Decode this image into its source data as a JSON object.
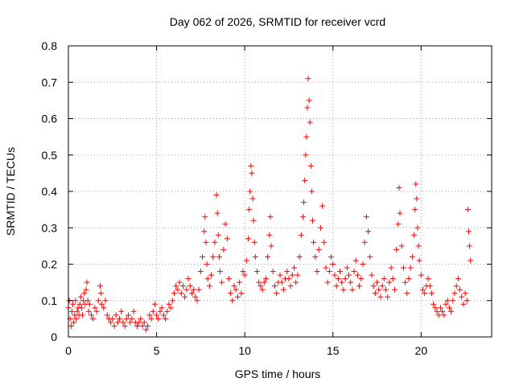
{
  "chart_data": {
    "type": "scatter",
    "title": "Day 062 of 2026, SRMTID for receiver vcrd",
    "xlabel": "GPS time / hours",
    "ylabel": "SRMTID / TECUs",
    "xlim": [
      0,
      24
    ],
    "ylim": [
      0,
      0.8
    ],
    "xticks": [
      0,
      5,
      10,
      15,
      20
    ],
    "yticks": [
      0,
      0.1,
      0.2,
      0.3,
      0.4,
      0.5,
      0.6,
      0.7,
      0.8
    ],
    "ytick_labels": [
      "0",
      "0.1",
      "0.2",
      "0.3",
      "0.4",
      "0.5",
      "0.6",
      "0.7",
      "0.8"
    ],
    "grid": true,
    "marker": "+",
    "series": [
      {
        "name": "SRMTID",
        "color": "#ff0000",
        "points": [
          [
            0.0,
            0.08
          ],
          [
            0.05,
            0.1
          ],
          [
            0.1,
            0.05
          ],
          [
            0.15,
            0.03
          ],
          [
            0.2,
            0.07
          ],
          [
            0.25,
            0.09
          ],
          [
            0.3,
            0.04
          ],
          [
            0.35,
            0.06
          ],
          [
            0.4,
            0.1
          ],
          [
            0.45,
            0.05
          ],
          [
            0.5,
            0.07
          ],
          [
            0.55,
            0.08
          ],
          [
            0.6,
            0.06
          ],
          [
            0.65,
            0.09
          ],
          [
            0.7,
            0.11
          ],
          [
            0.75,
            0.08
          ],
          [
            0.8,
            0.06
          ],
          [
            0.85,
            0.1
          ],
          [
            0.9,
            0.12
          ],
          [
            0.95,
            0.09
          ],
          [
            1.0,
            0.13
          ],
          [
            1.05,
            0.15
          ],
          [
            1.1,
            0.1
          ],
          [
            1.15,
            0.07
          ],
          [
            1.2,
            0.09
          ],
          [
            1.3,
            0.06
          ],
          [
            1.4,
            0.05
          ],
          [
            1.5,
            0.08
          ],
          [
            1.6,
            0.07
          ],
          [
            1.7,
            0.1
          ],
          [
            1.8,
            0.14
          ],
          [
            1.85,
            0.12
          ],
          [
            1.9,
            0.09
          ],
          [
            2.0,
            0.08
          ],
          [
            2.1,
            0.1
          ],
          [
            2.2,
            0.06
          ],
          [
            2.3,
            0.05
          ],
          [
            2.4,
            0.04
          ],
          [
            2.5,
            0.05
          ],
          [
            2.6,
            0.03
          ],
          [
            2.7,
            0.06
          ],
          [
            2.8,
            0.04
          ],
          [
            2.9,
            0.05
          ],
          [
            3.0,
            0.07
          ],
          [
            3.1,
            0.04
          ],
          [
            3.2,
            0.03
          ],
          [
            3.3,
            0.05
          ],
          [
            3.4,
            0.06
          ],
          [
            3.5,
            0.04
          ],
          [
            3.6,
            0.05
          ],
          [
            3.7,
            0.07
          ],
          [
            3.8,
            0.04
          ],
          [
            3.9,
            0.03
          ],
          [
            4.0,
            0.04
          ],
          [
            4.1,
            0.05
          ],
          [
            4.2,
            0.03
          ],
          [
            4.3,
            0.04
          ],
          [
            4.4,
            0.02
          ],
          [
            4.5,
            0.03
          ],
          [
            4.6,
            0.06
          ],
          [
            4.7,
            0.05
          ],
          [
            4.8,
            0.07
          ],
          [
            4.9,
            0.09
          ],
          [
            5.0,
            0.06
          ],
          [
            5.1,
            0.05
          ],
          [
            5.2,
            0.07
          ],
          [
            5.3,
            0.08
          ],
          [
            5.4,
            0.06
          ],
          [
            5.5,
            0.05
          ],
          [
            5.6,
            0.07
          ],
          [
            5.7,
            0.09
          ],
          [
            5.8,
            0.08
          ],
          [
            5.9,
            0.1
          ],
          [
            6.0,
            0.12
          ],
          [
            6.1,
            0.14
          ],
          [
            6.2,
            0.13
          ],
          [
            6.3,
            0.15
          ],
          [
            6.4,
            0.12
          ],
          [
            6.5,
            0.14
          ],
          [
            6.6,
            0.11
          ],
          [
            6.7,
            0.13
          ],
          [
            6.8,
            0.16
          ],
          [
            6.9,
            0.14
          ],
          [
            7.0,
            0.12
          ],
          [
            7.1,
            0.13
          ],
          [
            7.2,
            0.11
          ],
          [
            7.3,
            0.1
          ],
          [
            7.4,
            0.13
          ],
          [
            7.5,
            0.18
          ],
          [
            7.6,
            0.22
          ],
          [
            7.7,
            0.29
          ],
          [
            7.75,
            0.33
          ],
          [
            7.8,
            0.26
          ],
          [
            7.85,
            0.2
          ],
          [
            7.9,
            0.16
          ],
          [
            8.0,
            0.14
          ],
          [
            8.1,
            0.17
          ],
          [
            8.2,
            0.22
          ],
          [
            8.3,
            0.26
          ],
          [
            8.4,
            0.39
          ],
          [
            8.45,
            0.34
          ],
          [
            8.5,
            0.28
          ],
          [
            8.55,
            0.22
          ],
          [
            8.6,
            0.18
          ],
          [
            8.7,
            0.15
          ],
          [
            8.8,
            0.24
          ],
          [
            8.9,
            0.31
          ],
          [
            9.0,
            0.27
          ],
          [
            9.1,
            0.16
          ],
          [
            9.2,
            0.12
          ],
          [
            9.3,
            0.1
          ],
          [
            9.4,
            0.14
          ],
          [
            9.5,
            0.13
          ],
          [
            9.6,
            0.11
          ],
          [
            9.7,
            0.15
          ],
          [
            9.8,
            0.12
          ],
          [
            9.9,
            0.18
          ],
          [
            10.0,
            0.17
          ],
          [
            10.1,
            0.21
          ],
          [
            10.2,
            0.27
          ],
          [
            10.25,
            0.35
          ],
          [
            10.3,
            0.4
          ],
          [
            10.35,
            0.47
          ],
          [
            10.4,
            0.45
          ],
          [
            10.45,
            0.38
          ],
          [
            10.5,
            0.32
          ],
          [
            10.55,
            0.26
          ],
          [
            10.6,
            0.22
          ],
          [
            10.7,
            0.18
          ],
          [
            10.8,
            0.15
          ],
          [
            10.9,
            0.14
          ],
          [
            11.0,
            0.13
          ],
          [
            11.1,
            0.15
          ],
          [
            11.2,
            0.16
          ],
          [
            11.3,
            0.22
          ],
          [
            11.4,
            0.28
          ],
          [
            11.45,
            0.33
          ],
          [
            11.5,
            0.25
          ],
          [
            11.6,
            0.18
          ],
          [
            11.7,
            0.14
          ],
          [
            11.8,
            0.12
          ],
          [
            11.9,
            0.15
          ],
          [
            12.0,
            0.17
          ],
          [
            12.1,
            0.15
          ],
          [
            12.2,
            0.13
          ],
          [
            12.3,
            0.16
          ],
          [
            12.4,
            0.18
          ],
          [
            12.5,
            0.16
          ],
          [
            12.6,
            0.14
          ],
          [
            12.7,
            0.17
          ],
          [
            12.8,
            0.19
          ],
          [
            12.9,
            0.15
          ],
          [
            13.0,
            0.17
          ],
          [
            13.1,
            0.22
          ],
          [
            13.2,
            0.28
          ],
          [
            13.3,
            0.33
          ],
          [
            13.35,
            0.37
          ],
          [
            13.4,
            0.43
          ],
          [
            13.45,
            0.5
          ],
          [
            13.5,
            0.55
          ],
          [
            13.55,
            0.63
          ],
          [
            13.6,
            0.71
          ],
          [
            13.65,
            0.65
          ],
          [
            13.7,
            0.59
          ],
          [
            13.75,
            0.47
          ],
          [
            13.8,
            0.4
          ],
          [
            13.85,
            0.32
          ],
          [
            13.9,
            0.26
          ],
          [
            14.0,
            0.22
          ],
          [
            14.1,
            0.18
          ],
          [
            14.2,
            0.24
          ],
          [
            14.3,
            0.3
          ],
          [
            14.4,
            0.36
          ],
          [
            14.5,
            0.26
          ],
          [
            14.6,
            0.19
          ],
          [
            14.7,
            0.15
          ],
          [
            14.8,
            0.18
          ],
          [
            14.9,
            0.22
          ],
          [
            15.0,
            0.2
          ],
          [
            15.1,
            0.17
          ],
          [
            15.2,
            0.14
          ],
          [
            15.3,
            0.16
          ],
          [
            15.4,
            0.18
          ],
          [
            15.5,
            0.15
          ],
          [
            15.6,
            0.13
          ],
          [
            15.7,
            0.16
          ],
          [
            15.8,
            0.19
          ],
          [
            15.9,
            0.17
          ],
          [
            16.0,
            0.15
          ],
          [
            16.1,
            0.13
          ],
          [
            16.2,
            0.18
          ],
          [
            16.3,
            0.21
          ],
          [
            16.4,
            0.17
          ],
          [
            16.5,
            0.14
          ],
          [
            16.6,
            0.16
          ],
          [
            16.7,
            0.2
          ],
          [
            16.8,
            0.26
          ],
          [
            16.9,
            0.33
          ],
          [
            17.0,
            0.29
          ],
          [
            17.1,
            0.22
          ],
          [
            17.2,
            0.17
          ],
          [
            17.3,
            0.14
          ],
          [
            17.4,
            0.12
          ],
          [
            17.5,
            0.15
          ],
          [
            17.6,
            0.13
          ],
          [
            17.7,
            0.11
          ],
          [
            17.8,
            0.14
          ],
          [
            17.9,
            0.16
          ],
          [
            18.0,
            0.13
          ],
          [
            18.1,
            0.11
          ],
          [
            18.2,
            0.15
          ],
          [
            18.3,
            0.19
          ],
          [
            18.4,
            0.16
          ],
          [
            18.5,
            0.13
          ],
          [
            18.6,
            0.24
          ],
          [
            18.7,
            0.31
          ],
          [
            18.75,
            0.41
          ],
          [
            18.8,
            0.34
          ],
          [
            18.9,
            0.25
          ],
          [
            19.0,
            0.19
          ],
          [
            19.1,
            0.15
          ],
          [
            19.2,
            0.12
          ],
          [
            19.3,
            0.16
          ],
          [
            19.4,
            0.19
          ],
          [
            19.5,
            0.22
          ],
          [
            19.6,
            0.28
          ],
          [
            19.65,
            0.35
          ],
          [
            19.7,
            0.42
          ],
          [
            19.75,
            0.38
          ],
          [
            19.8,
            0.3
          ],
          [
            19.85,
            0.25
          ],
          [
            19.9,
            0.21
          ],
          [
            20.0,
            0.17
          ],
          [
            20.1,
            0.13
          ],
          [
            20.2,
            0.12
          ],
          [
            20.3,
            0.14
          ],
          [
            20.4,
            0.16
          ],
          [
            20.5,
            0.14
          ],
          [
            20.6,
            0.12
          ],
          [
            20.7,
            0.09
          ],
          [
            20.8,
            0.08
          ],
          [
            20.9,
            0.07
          ],
          [
            21.0,
            0.06
          ],
          [
            21.1,
            0.08
          ],
          [
            21.2,
            0.07
          ],
          [
            21.3,
            0.06
          ],
          [
            21.4,
            0.09
          ],
          [
            21.5,
            0.1
          ],
          [
            21.6,
            0.08
          ],
          [
            21.7,
            0.07
          ],
          [
            21.8,
            0.1
          ],
          [
            21.9,
            0.12
          ],
          [
            22.0,
            0.14
          ],
          [
            22.1,
            0.16
          ],
          [
            22.2,
            0.13
          ],
          [
            22.3,
            0.11
          ],
          [
            22.4,
            0.09
          ],
          [
            22.5,
            0.12
          ],
          [
            22.6,
            0.1
          ],
          [
            22.65,
            0.35
          ],
          [
            22.7,
            0.29
          ],
          [
            22.75,
            0.25
          ],
          [
            22.8,
            0.21
          ]
        ]
      }
    ]
  }
}
